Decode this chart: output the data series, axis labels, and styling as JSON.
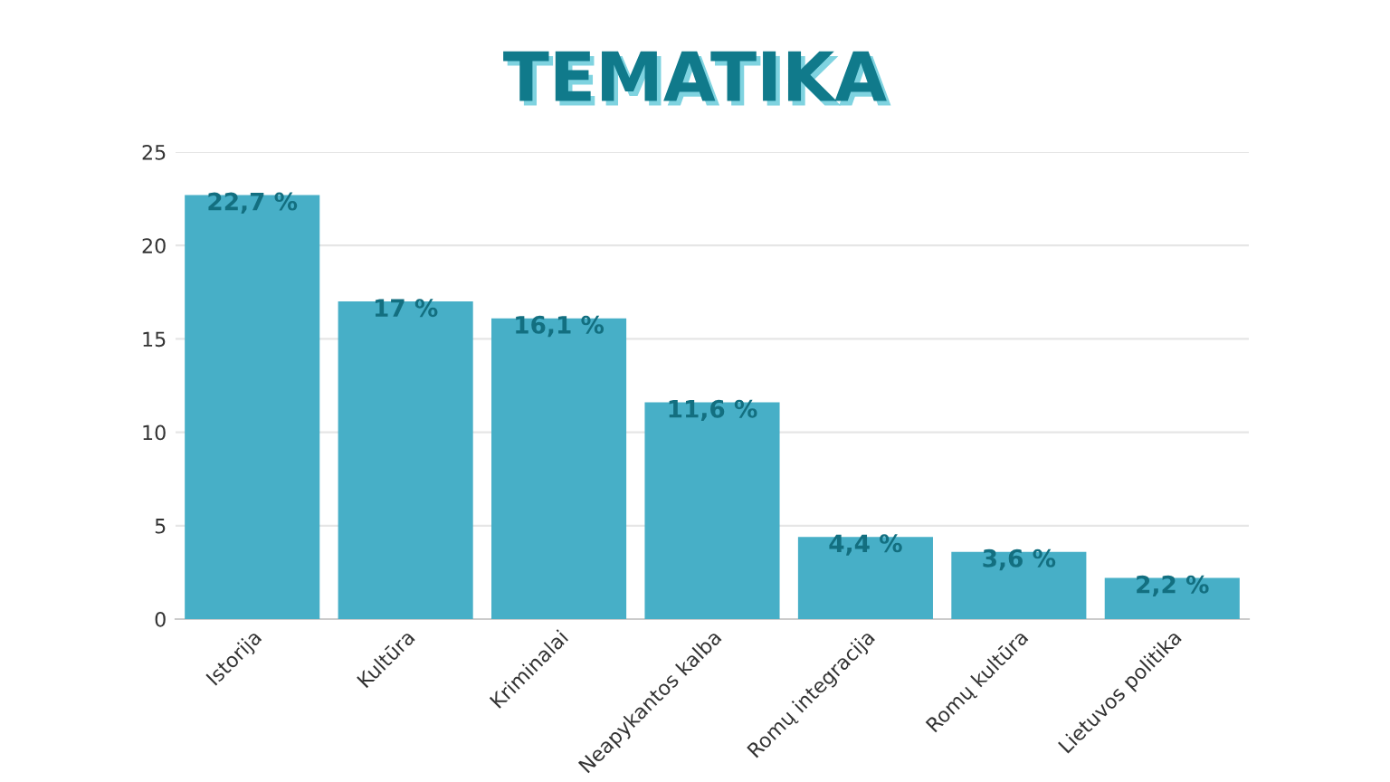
{
  "chart_data": {
    "type": "bar",
    "title": "TEMATIKA",
    "categories": [
      "Istorija",
      "Kultūra",
      "Kriminalai",
      "Neapykantos kalba",
      "Romų integracija",
      "Romų kultūra",
      "Lietuvos politika"
    ],
    "values": [
      22.7,
      17,
      16.1,
      11.6,
      4.4,
      3.6,
      2.2
    ],
    "value_labels": [
      "22,7 %",
      "17 %",
      "16,1 %",
      "11,6 %",
      "4,4 %",
      "3,6 %",
      "2,2 %"
    ],
    "color": "#47afc7",
    "ylim": [
      0,
      25
    ],
    "yticks": [
      0,
      5,
      10,
      15,
      20,
      25
    ],
    "grid": "y"
  }
}
